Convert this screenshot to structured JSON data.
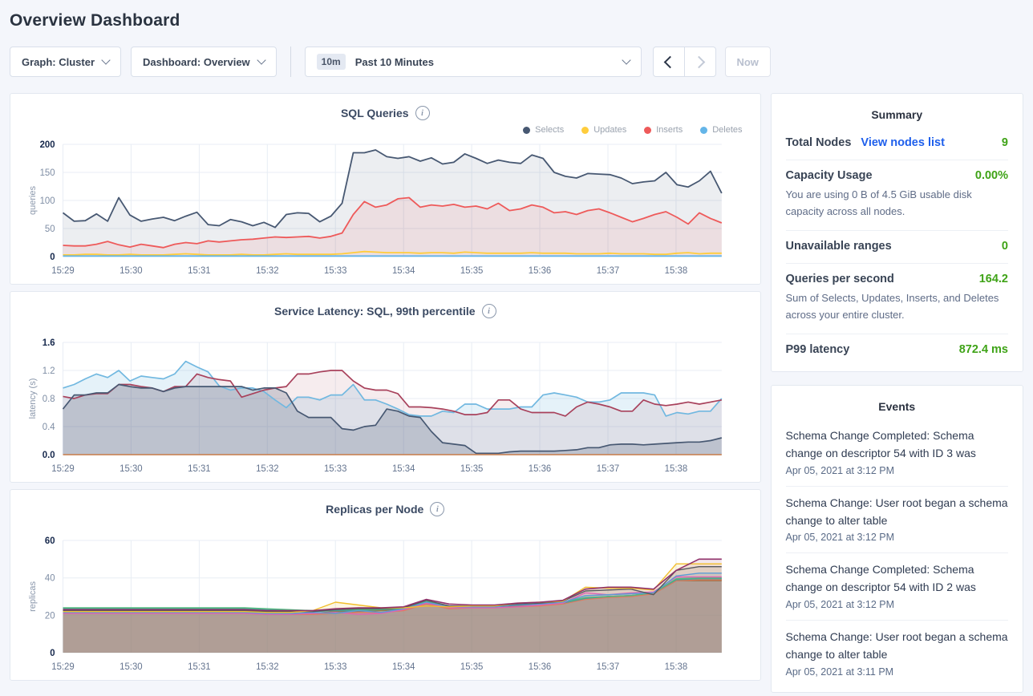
{
  "page": {
    "title": "Overview Dashboard"
  },
  "toolbar": {
    "graph_dropdown": {
      "text": "Graph: Cluster"
    },
    "dashboard_dropdown": {
      "text": "Dashboard: Overview"
    },
    "time_selector": {
      "badge": "10m",
      "label": "Past 10 Minutes"
    },
    "now_button": "Now"
  },
  "summary": {
    "title": "Summary",
    "rows": [
      {
        "label": "Total Nodes",
        "link": "View nodes list",
        "value": "9",
        "description": ""
      },
      {
        "label": "Capacity Usage",
        "value": "0.00%",
        "description": "You are using 0 B of 4.5 GiB usable disk capacity across all nodes."
      },
      {
        "label": "Unavailable ranges",
        "value": "0",
        "description": ""
      },
      {
        "label": "Queries per second",
        "value": "164.2",
        "description": "Sum of Selects, Updates, Inserts, and Deletes across your entire cluster."
      },
      {
        "label": "P99 latency",
        "value": "872.4 ms",
        "description": ""
      }
    ]
  },
  "events": {
    "title": "Events",
    "items": [
      {
        "message": "Schema Change Completed: Schema change on descriptor 54 with ID 3 was",
        "timestamp": "Apr 05, 2021 at 3:12 PM"
      },
      {
        "message": "Schema Change: User root began a schema change to alter table",
        "timestamp": "Apr 05, 2021 at 3:12 PM"
      },
      {
        "message": "Schema Change Completed: Schema change on descriptor 54 with ID 2 was",
        "timestamp": "Apr 05, 2021 at 3:12 PM"
      },
      {
        "message": "Schema Change: User root began a schema change to alter table",
        "timestamp": "Apr 05, 2021 at 3:11 PM"
      }
    ]
  },
  "colors": {
    "value_green": "#3fa317",
    "link_blue": "#1e5fec",
    "selects_navy": "#475872",
    "updates_yellow": "#ffcd3c",
    "inserts_red": "#ee5a5a",
    "deletes_blue": "#64b5e8"
  },
  "chart_data": [
    {
      "type": "line",
      "title": "SQL Queries",
      "ylabel": "queries",
      "ylim": [
        0,
        200
      ],
      "yticks": [
        0,
        50,
        100,
        150,
        200
      ],
      "ytick_labels": [
        "0",
        "50",
        "100",
        "150",
        "200"
      ],
      "x_tick_labels": [
        "15:29",
        "15:30",
        "15:31",
        "15:32",
        "15:33",
        "15:34",
        "15:35",
        "15:36",
        "15:37",
        "15:38"
      ],
      "x_span_minutes": 9.67,
      "grid": true,
      "legend_position": "top-right",
      "has_legend": true,
      "series": [
        {
          "name": "Selects",
          "color": "#475872",
          "fill": "rgba(71,88,114,0.10)",
          "width": 1.8,
          "values": [
            78,
            63,
            64,
            76,
            63,
            105,
            74,
            63,
            67,
            70,
            64,
            72,
            79,
            57,
            55,
            66,
            62,
            55,
            61,
            52,
            75,
            78,
            77,
            62,
            72,
            95,
            185,
            185,
            190,
            178,
            175,
            178,
            170,
            176,
            165,
            168,
            183,
            175,
            166,
            172,
            168,
            166,
            181,
            175,
            150,
            143,
            140,
            148,
            147,
            146,
            140,
            130,
            133,
            135,
            150,
            128,
            124,
            135,
            152,
            113
          ]
        },
        {
          "name": "Updates",
          "color": "#ffcd3c",
          "fill": null,
          "width": 1.8,
          "values": [
            3,
            3,
            4,
            4,
            3,
            3,
            4,
            3,
            3,
            3,
            4,
            5,
            4,
            3,
            3,
            3,
            4,
            3,
            3,
            4,
            5,
            4,
            4,
            4,
            4,
            5,
            7,
            9,
            8,
            7,
            7,
            7,
            6,
            7,
            7,
            6,
            8,
            7,
            6,
            6,
            6,
            6,
            7,
            6,
            6,
            6,
            5,
            5,
            5,
            6,
            5,
            5,
            5,
            4,
            4,
            6,
            7,
            5,
            6,
            6
          ]
        },
        {
          "name": "Inserts",
          "color": "#ee5a5a",
          "fill": "rgba(238,90,90,0.10)",
          "width": 1.8,
          "values": [
            20,
            19,
            19,
            22,
            27,
            21,
            17,
            22,
            19,
            16,
            22,
            25,
            23,
            28,
            26,
            28,
            30,
            31,
            33,
            35,
            34,
            35,
            36,
            33,
            36,
            42,
            75,
            98,
            88,
            92,
            103,
            105,
            88,
            92,
            90,
            93,
            88,
            90,
            85,
            95,
            82,
            85,
            92,
            88,
            78,
            80,
            75,
            82,
            85,
            78,
            70,
            62,
            68,
            75,
            80,
            70,
            58,
            78,
            68,
            60
          ]
        },
        {
          "name": "Deletes",
          "color": "#64b5e8",
          "fill": null,
          "width": 1.8,
          "values": [
            1,
            1,
            1,
            1,
            1,
            1,
            1,
            1,
            1,
            1,
            1,
            1,
            1,
            1,
            1,
            1,
            1,
            1,
            1,
            1,
            1,
            1,
            1,
            1,
            1,
            1,
            1,
            1,
            1,
            1,
            1,
            1,
            1,
            1,
            1,
            1,
            1,
            1,
            1,
            1,
            1,
            1,
            1,
            1,
            1,
            1,
            1,
            1,
            1,
            1,
            1,
            1,
            1,
            1,
            1,
            1,
            1,
            1,
            1,
            1
          ]
        }
      ]
    },
    {
      "type": "line",
      "title": "Service Latency: SQL, 99th percentile",
      "ylabel": "latency (s)",
      "ylim": [
        0,
        1.6
      ],
      "yticks": [
        0,
        0.4,
        0.8,
        1.2,
        1.6
      ],
      "ytick_labels": [
        "0.0",
        "0.4",
        "0.8",
        "1.2",
        "1.6"
      ],
      "x_tick_labels": [
        "15:29",
        "15:30",
        "15:31",
        "15:32",
        "15:33",
        "15:34",
        "15:35",
        "15:36",
        "15:37",
        "15:38"
      ],
      "x_span_minutes": 9.67,
      "grid": true,
      "has_legend": false,
      "series": [
        {
          "color": "#71b8e0",
          "fill": "rgba(113,184,224,0.18)",
          "width": 1.7,
          "values": [
            0.95,
            1.0,
            1.08,
            1.15,
            1.1,
            1.2,
            1.05,
            1.12,
            1.1,
            1.08,
            1.15,
            1.33,
            1.25,
            1.18,
            0.98,
            0.92,
            0.95,
            0.95,
            0.9,
            0.78,
            0.67,
            0.82,
            0.82,
            0.78,
            0.85,
            0.85,
            1.0,
            0.78,
            0.78,
            0.72,
            0.65,
            0.57,
            0.55,
            0.55,
            0.62,
            0.6,
            0.72,
            0.72,
            0.65,
            0.65,
            0.65,
            0.68,
            0.68,
            0.85,
            0.88,
            0.85,
            0.82,
            0.75,
            0.75,
            0.78,
            0.88,
            0.88,
            0.88,
            0.85,
            0.55,
            0.6,
            0.58,
            0.62,
            0.62,
            0.8
          ]
        },
        {
          "color": "#a8415b",
          "fill": "rgba(168,65,91,0.10)",
          "width": 1.7,
          "values": [
            0.83,
            0.8,
            0.85,
            0.87,
            0.87,
            1.0,
            1.0,
            0.97,
            0.95,
            0.9,
            0.97,
            0.97,
            1.15,
            1.1,
            1.07,
            1.05,
            0.82,
            0.87,
            0.92,
            0.95,
            0.97,
            1.15,
            1.15,
            1.18,
            1.2,
            1.2,
            1.05,
            0.95,
            0.92,
            0.92,
            0.87,
            0.68,
            0.68,
            0.67,
            0.65,
            0.62,
            0.57,
            0.57,
            0.6,
            0.78,
            0.78,
            0.65,
            0.6,
            0.6,
            0.6,
            0.55,
            0.68,
            0.75,
            0.72,
            0.68,
            0.62,
            0.62,
            0.78,
            0.72,
            0.7,
            0.72,
            0.75,
            0.72,
            0.75,
            0.78
          ]
        },
        {
          "color": "#475872",
          "fill": "rgba(71,88,114,0.22)",
          "width": 1.7,
          "values": [
            0.65,
            0.85,
            0.85,
            0.88,
            0.88,
            1.0,
            0.97,
            0.95,
            0.95,
            0.9,
            0.95,
            0.97,
            0.97,
            0.97,
            0.97,
            0.97,
            0.97,
            0.92,
            0.95,
            0.95,
            0.88,
            0.62,
            0.53,
            0.53,
            0.53,
            0.37,
            0.35,
            0.4,
            0.42,
            0.65,
            0.62,
            0.55,
            0.53,
            0.33,
            0.17,
            0.15,
            0.13,
            0.02,
            0.02,
            0.02,
            0.04,
            0.05,
            0.05,
            0.05,
            0.05,
            0.06,
            0.07,
            0.1,
            0.1,
            0.14,
            0.15,
            0.15,
            0.14,
            0.15,
            0.16,
            0.17,
            0.18,
            0.18,
            0.2,
            0.24
          ]
        },
        {
          "color": "#c77b48",
          "fill": null,
          "width": 1.4,
          "values": [
            0,
            0,
            0,
            0,
            0,
            0,
            0,
            0,
            0,
            0,
            0,
            0,
            0,
            0,
            0,
            0,
            0,
            0,
            0,
            0,
            0,
            0,
            0,
            0,
            0,
            0,
            0,
            0,
            0,
            0,
            0,
            0,
            0,
            0,
            0,
            0,
            0,
            0,
            0,
            0,
            0,
            0,
            0,
            0,
            0,
            0,
            0,
            0,
            0,
            0,
            0,
            0,
            0,
            0,
            0,
            0,
            0,
            0,
            0,
            0
          ]
        }
      ]
    },
    {
      "type": "line",
      "title": "Replicas per Node",
      "ylabel": "replicas",
      "ylim": [
        0,
        60
      ],
      "yticks": [
        0,
        20,
        40,
        60
      ],
      "ytick_labels": [
        "0",
        "20",
        "40",
        "60"
      ],
      "x_tick_labels": [
        "15:29",
        "15:30",
        "15:31",
        "15:32",
        "15:33",
        "15:34",
        "15:35",
        "15:36",
        "15:37",
        "15:38"
      ],
      "x_span_minutes": 9.67,
      "grid": true,
      "has_legend": false,
      "series": [
        {
          "color": "#9c7144",
          "fill": "rgba(156,113,68,0.16)",
          "width": 1.4,
          "values": [
            22,
            22,
            22,
            22,
            22,
            22,
            22,
            22,
            22,
            21.5,
            21,
            21,
            22,
            22,
            22.5,
            23,
            26.5,
            24,
            24.5,
            24.5,
            25,
            25.5,
            26.5,
            29,
            30,
            30.5,
            31.5,
            38.5,
            38.5,
            38.5
          ]
        },
        {
          "color": "#e07b5f",
          "fill": "rgba(224,123,95,0.16)",
          "width": 1.4,
          "values": [
            21,
            21,
            21,
            21,
            21,
            21,
            21,
            21,
            21,
            20.5,
            20.5,
            20.5,
            21,
            21.5,
            21.5,
            22.5,
            26,
            23.5,
            24,
            24,
            24.5,
            25,
            26,
            28.5,
            29.5,
            30,
            31.5,
            38.5,
            39,
            39
          ]
        },
        {
          "color": "#4a9e98",
          "fill": "rgba(74,158,152,0.14)",
          "width": 1.4,
          "values": [
            23.5,
            23.5,
            23.5,
            23.5,
            23.5,
            23.5,
            23.5,
            23.5,
            23.5,
            23,
            22.5,
            22,
            22.5,
            22.5,
            23,
            23.5,
            27,
            24.5,
            24.5,
            24.5,
            25.5,
            26,
            26.5,
            29,
            30,
            30.5,
            32,
            39,
            39.5,
            39.5
          ]
        },
        {
          "color": "#53b87f",
          "fill": "rgba(83,184,127,0.14)",
          "width": 1.4,
          "values": [
            24,
            24,
            24,
            24,
            24,
            24,
            24,
            24,
            24,
            23.5,
            23,
            22.5,
            23,
            23,
            23,
            24,
            27.5,
            25,
            25,
            25,
            26,
            26.5,
            27,
            29.5,
            30,
            30.5,
            32,
            39.5,
            40,
            40
          ]
        },
        {
          "color": "#df64b4",
          "fill": "rgba(223,100,180,0.12)",
          "width": 1.4,
          "values": [
            21,
            21,
            21,
            21,
            21,
            21,
            21,
            21,
            21,
            20.5,
            20.5,
            21,
            21.5,
            20.5,
            21,
            23,
            26.5,
            24,
            24,
            24,
            24.5,
            25.5,
            26.5,
            32,
            31,
            32,
            32.5,
            40.5,
            40.5,
            40.5
          ]
        },
        {
          "color": "#5b9bd5",
          "fill": "rgba(91,155,213,0.14)",
          "width": 1.4,
          "values": [
            21.5,
            21.5,
            21.5,
            21.5,
            21.5,
            21.5,
            21.5,
            21.5,
            21.5,
            21,
            21,
            21.5,
            21,
            22.5,
            21.5,
            23.5,
            27,
            24.5,
            24.5,
            24.5,
            25.5,
            26,
            27,
            30.5,
            31,
            31.5,
            32,
            41,
            42.5,
            42.5
          ]
        },
        {
          "color": "#57595e",
          "fill": "rgba(87,89,94,0.12)",
          "width": 1.4,
          "values": [
            22.5,
            22.5,
            22.5,
            22.5,
            22.5,
            22.5,
            22.5,
            22.5,
            22.5,
            22,
            22,
            22,
            23,
            23.5,
            23.5,
            24,
            28,
            25,
            25,
            25,
            26,
            26.5,
            27.5,
            33,
            33.5,
            34,
            31,
            44,
            46,
            46
          ]
        },
        {
          "color": "#f2be2c",
          "fill": "rgba(242,190,44,0.14)",
          "width": 1.4,
          "values": [
            22,
            22,
            22,
            22,
            22,
            22,
            22,
            22,
            22,
            21.5,
            21.5,
            22.5,
            27,
            25.5,
            24,
            24,
            25,
            24.5,
            25,
            25,
            26.5,
            27,
            27.5,
            35,
            34.5,
            34.5,
            33.5,
            47.5,
            47.5,
            47.5
          ]
        },
        {
          "color": "#90316a",
          "fill": "rgba(144,49,106,0.12)",
          "width": 1.6,
          "values": [
            23,
            23,
            23,
            23,
            23,
            23,
            23,
            23,
            23,
            22.5,
            22.5,
            22.5,
            23.5,
            24,
            24,
            24.5,
            28.5,
            26,
            25.5,
            25.5,
            26.5,
            27,
            28,
            34,
            35,
            35,
            34,
            44,
            50,
            50
          ]
        }
      ]
    }
  ]
}
